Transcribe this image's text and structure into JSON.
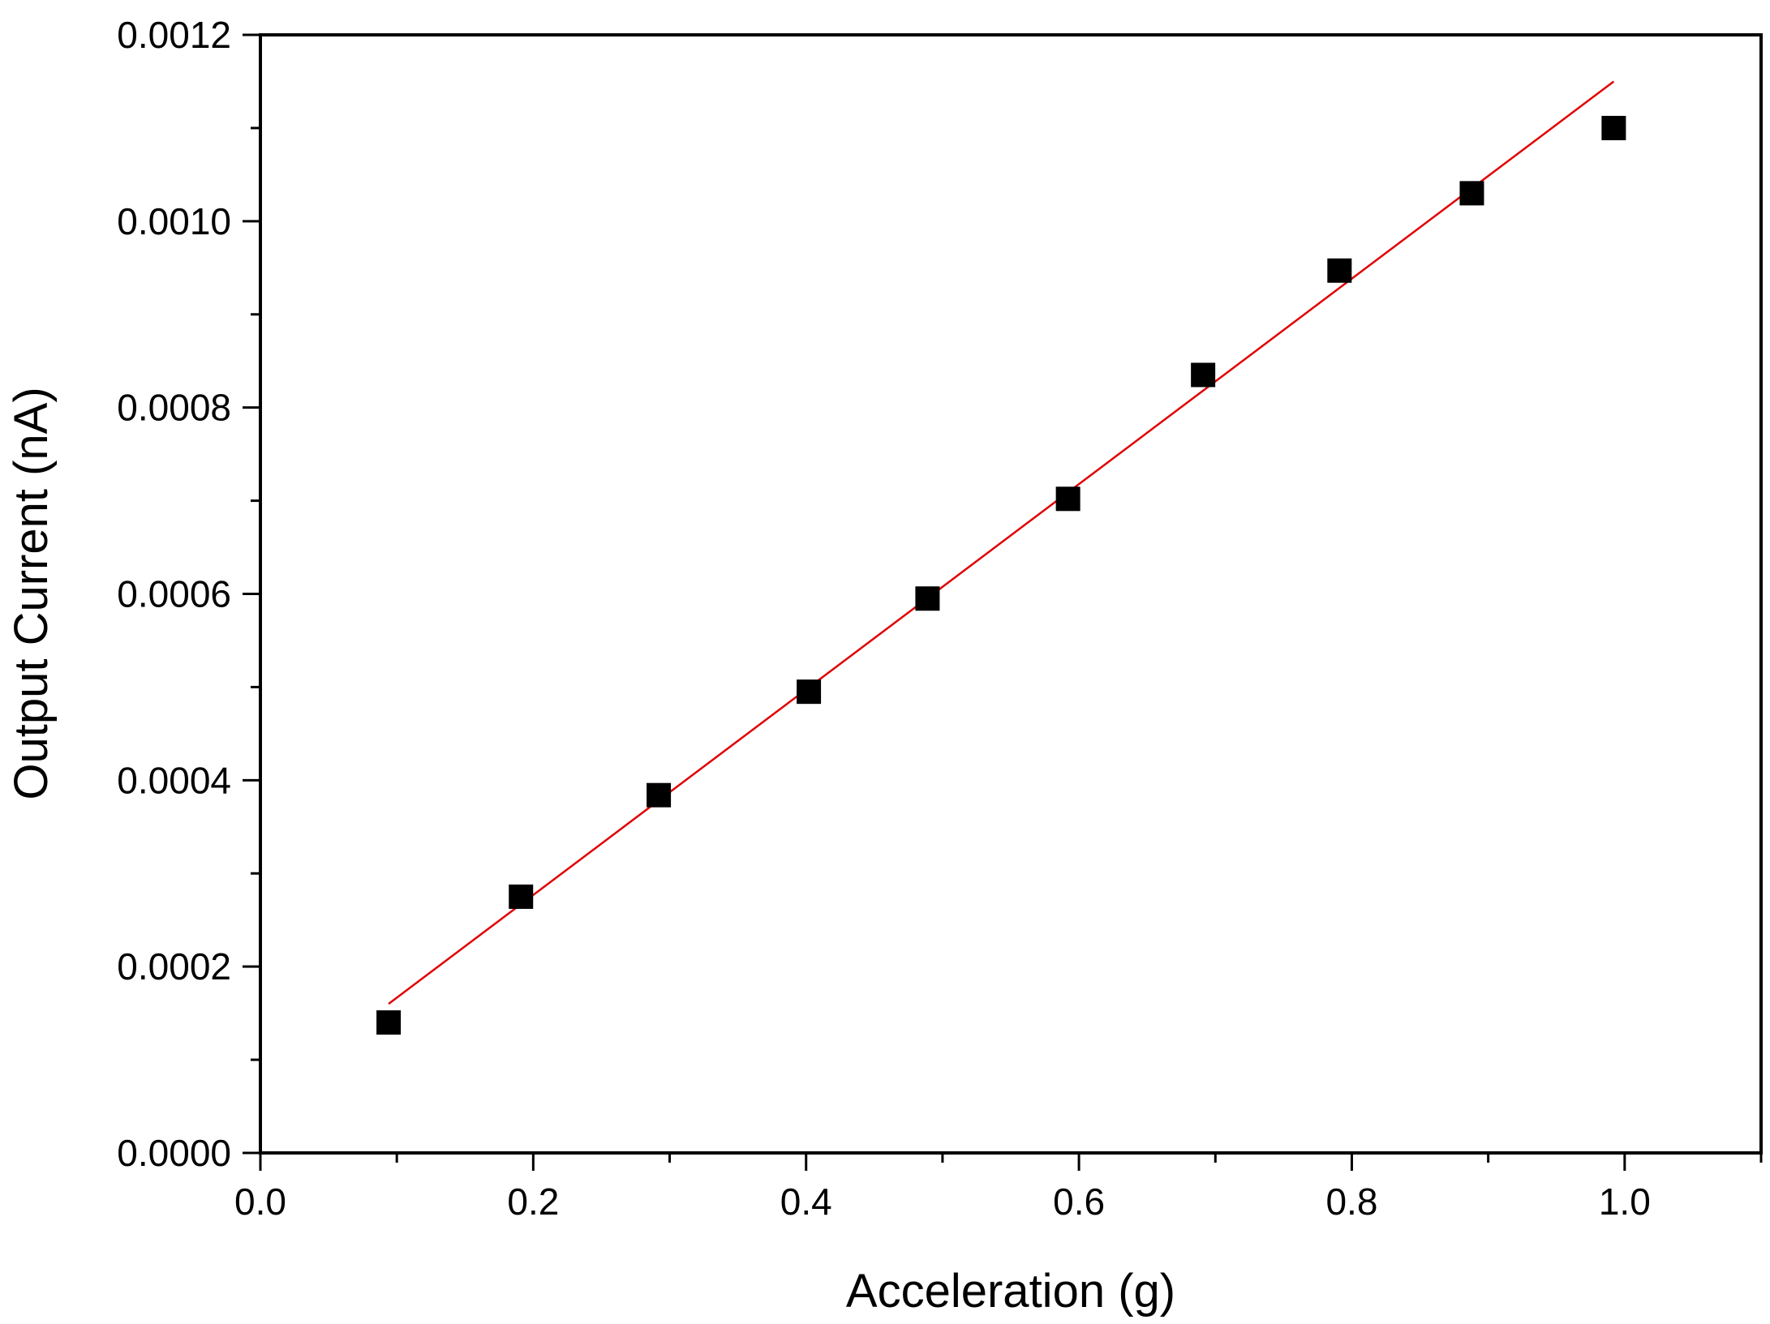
{
  "chart_data": {
    "type": "scatter",
    "xlabel": "Acceleration (g)",
    "ylabel": "Output Current (nA)",
    "xlim": [
      0.0,
      1.1
    ],
    "ylim": [
      0.0,
      0.0012
    ],
    "x_ticks": [
      "0.0",
      "0.2",
      "0.4",
      "0.6",
      "0.8",
      "1.0"
    ],
    "y_ticks": [
      "0.0000",
      "0.0002",
      "0.0004",
      "0.0006",
      "0.0008",
      "0.0010",
      "0.0012"
    ],
    "grid": false,
    "legend": "none",
    "series": [
      {
        "marker": "square",
        "color": "#000000",
        "points": [
          {
            "x": 0.094,
            "y": 0.00014
          },
          {
            "x": 0.191,
            "y": 0.000275
          },
          {
            "x": 0.292,
            "y": 0.000384
          },
          {
            "x": 0.402,
            "y": 0.000495
          },
          {
            "x": 0.489,
            "y": 0.000595
          },
          {
            "x": 0.592,
            "y": 0.000702
          },
          {
            "x": 0.691,
            "y": 0.000835
          },
          {
            "x": 0.791,
            "y": 0.000947
          },
          {
            "x": 0.888,
            "y": 0.00103
          },
          {
            "x": 0.992,
            "y": 0.0011
          }
        ]
      }
    ],
    "fit_line": {
      "color": "#e00000",
      "x": [
        0.094,
        0.992
      ],
      "y": [
        0.00016,
        0.00115
      ]
    }
  }
}
